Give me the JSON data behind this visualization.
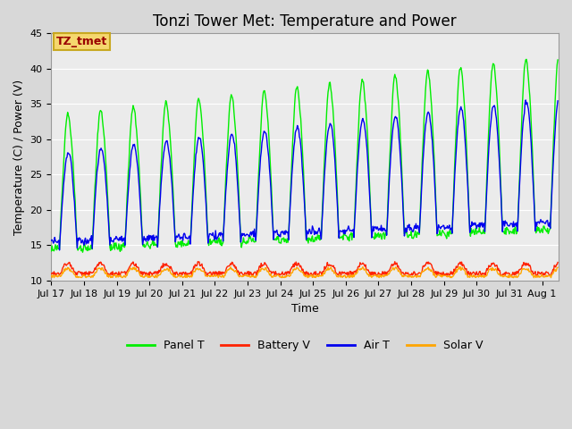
{
  "title": "Tonzi Tower Met: Temperature and Power",
  "xlabel": "Time",
  "ylabel": "Temperature (C) / Power (V)",
  "ylim": [
    10,
    45
  ],
  "x_tick_labels": [
    "Jul 17",
    "Jul 18",
    "Jul 19",
    "Jul 20",
    "Jul 21",
    "Jul 22",
    "Jul 23",
    "Jul 24",
    "Jul 25",
    "Jul 26",
    "Jul 27",
    "Jul 28",
    "Jul 29",
    "Jul 30",
    "Jul 31",
    "Aug 1"
  ],
  "annotation_text": "TZ_tmet",
  "annotation_box_facecolor": "#F5D76E",
  "annotation_box_edgecolor": "#C8A820",
  "annotation_text_color": "#990000",
  "panel_t_color": "#00EE00",
  "battery_v_color": "#FF2200",
  "air_t_color": "#0000EE",
  "solar_v_color": "#FFA500",
  "plot_bg_color": "#EBEBEB",
  "grid_color": "#FFFFFF",
  "title_fontsize": 12,
  "axis_label_fontsize": 9,
  "tick_fontsize": 8,
  "legend_fontsize": 9,
  "linewidth": 1.0
}
